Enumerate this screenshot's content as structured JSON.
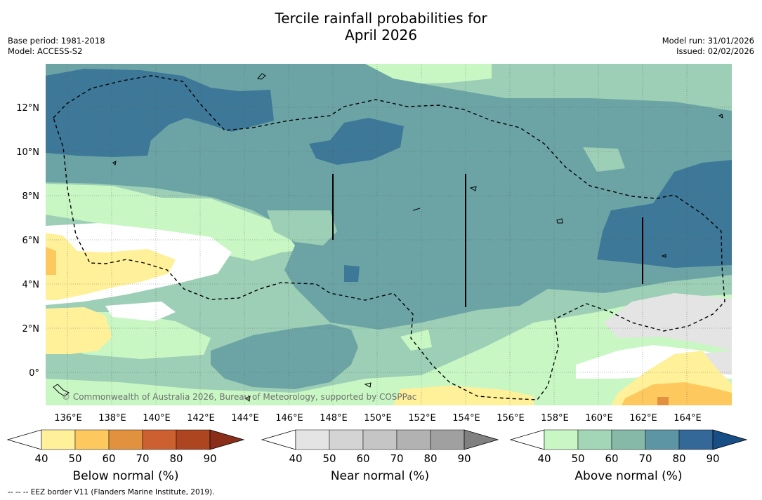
{
  "header": {
    "title_line1": "Tercile rainfall probabilities for",
    "title_line2": "April 2026",
    "base_period": "Base period: 1981-2018",
    "model": "Model: ACCESS-S2",
    "model_run": "Model run: 31/01/2026",
    "issued": "Issued: 02/02/2026"
  },
  "map": {
    "lon_labels": [
      "136°E",
      "138°E",
      "140°E",
      "142°E",
      "144°E",
      "146°E",
      "148°E",
      "150°E",
      "152°E",
      "154°E",
      "156°E",
      "158°E",
      "160°E",
      "162°E",
      "164°E"
    ],
    "lat_labels": [
      "12°N",
      "10°N",
      "8°N",
      "6°N",
      "4°N",
      "2°N",
      "0°"
    ],
    "copyright": "© Commonwealth of Australia 2026, Bureau of Meteorology, supported by COSPPac"
  },
  "colorbars": [
    {
      "title": "Below normal (%)",
      "ticks": [
        "40",
        "50",
        "60",
        "70",
        "80",
        "90"
      ],
      "colors": [
        "#fff09a",
        "#fdc95e",
        "#e2913f",
        "#cd6030",
        "#ad4520"
      ],
      "over": "#8a2e1a"
    },
    {
      "title": "Near normal (%)",
      "ticks": [
        "40",
        "50",
        "60",
        "70",
        "80",
        "90"
      ],
      "colors": [
        "#e4e4e4",
        "#d4d4d4",
        "#c5c5c5",
        "#b2b2b2",
        "#a0a0a0"
      ],
      "over": "#808080"
    },
    {
      "title": "Above normal (%)",
      "ticks": [
        "40",
        "50",
        "60",
        "70",
        "80",
        "90"
      ],
      "colors": [
        "#c8f7c4",
        "#a3d6b6",
        "#86b9a8",
        "#5d95a4",
        "#336898"
      ],
      "over": "#174e85"
    }
  ],
  "footnote": "--  --  -- EEZ border V11 (Flanders Marine Institute, 2019)."
}
